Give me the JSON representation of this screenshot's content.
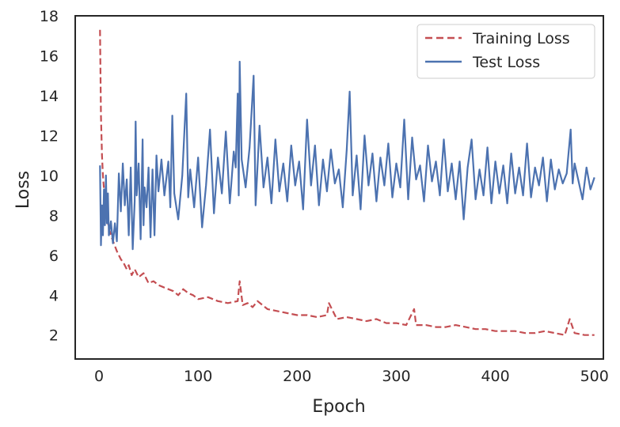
{
  "chart_data": {
    "type": "line",
    "xlabel": "Epoch",
    "ylabel": "Loss",
    "xlim": [
      -24,
      509
    ],
    "ylim": [
      0.8,
      18
    ],
    "xticks": [
      0,
      100,
      200,
      300,
      400,
      500
    ],
    "yticks": [
      2,
      4,
      6,
      8,
      10,
      12,
      14,
      16,
      18
    ],
    "grid": false,
    "legend": {
      "placement": "top-right"
    },
    "series": [
      {
        "name": "Training Loss",
        "color": "#c44e52",
        "style": "dashed",
        "x": [
          1,
          2,
          3,
          4,
          5,
          6,
          7,
          8,
          10,
          12,
          15,
          18,
          20,
          22,
          25,
          28,
          30,
          33,
          36,
          40,
          45,
          50,
          55,
          60,
          65,
          70,
          75,
          80,
          85,
          90,
          95,
          100,
          110,
          120,
          130,
          140,
          142,
          145,
          150,
          155,
          160,
          170,
          180,
          190,
          200,
          210,
          220,
          230,
          232,
          240,
          250,
          260,
          270,
          280,
          290,
          300,
          310,
          318,
          320,
          330,
          340,
          350,
          360,
          370,
          380,
          390,
          400,
          410,
          420,
          430,
          440,
          450,
          460,
          470,
          475,
          480,
          490,
          500
        ],
        "y": [
          17.3,
          13.0,
          11.0,
          10.0,
          9.3,
          8.7,
          8.3,
          7.9,
          7.4,
          7.0,
          6.6,
          6.2,
          6.0,
          5.8,
          5.6,
          5.3,
          5.5,
          5.0,
          5.3,
          4.9,
          5.1,
          4.6,
          4.7,
          4.5,
          4.4,
          4.3,
          4.2,
          4.0,
          4.3,
          4.1,
          4.0,
          3.8,
          3.9,
          3.7,
          3.6,
          3.7,
          4.7,
          3.5,
          3.6,
          3.4,
          3.7,
          3.3,
          3.2,
          3.1,
          3.0,
          3.0,
          2.9,
          3.0,
          3.6,
          2.8,
          2.9,
          2.8,
          2.7,
          2.8,
          2.6,
          2.6,
          2.5,
          3.3,
          2.5,
          2.5,
          2.4,
          2.4,
          2.5,
          2.4,
          2.3,
          2.3,
          2.2,
          2.2,
          2.2,
          2.1,
          2.1,
          2.2,
          2.1,
          2.0,
          2.8,
          2.1,
          2.0,
          2.0
        ]
      },
      {
        "name": "Test Loss",
        "color": "#4c72b0",
        "style": "solid",
        "x": [
          1,
          2,
          3,
          4,
          5,
          6,
          7,
          8,
          9,
          10,
          12,
          14,
          16,
          18,
          20,
          22,
          24,
          26,
          28,
          30,
          32,
          34,
          36,
          37,
          38,
          40,
          42,
          44,
          45,
          46,
          48,
          50,
          52,
          54,
          56,
          58,
          60,
          63,
          66,
          70,
          72,
          74,
          76,
          80,
          84,
          88,
          90,
          92,
          96,
          100,
          104,
          108,
          112,
          116,
          120,
          124,
          128,
          132,
          136,
          138,
          140,
          141,
          142,
          144,
          148,
          152,
          156,
          158,
          162,
          166,
          170,
          174,
          178,
          182,
          186,
          190,
          194,
          198,
          202,
          206,
          210,
          214,
          218,
          222,
          226,
          230,
          234,
          238,
          242,
          246,
          250,
          253,
          256,
          260,
          264,
          268,
          272,
          276,
          280,
          284,
          288,
          292,
          296,
          300,
          304,
          308,
          312,
          316,
          320,
          324,
          328,
          332,
          336,
          340,
          344,
          348,
          352,
          356,
          360,
          364,
          368,
          372,
          376,
          380,
          384,
          388,
          392,
          396,
          400,
          404,
          408,
          412,
          416,
          420,
          424,
          428,
          432,
          436,
          440,
          444,
          448,
          452,
          456,
          460,
          464,
          468,
          472,
          476,
          478,
          480,
          484,
          488,
          492,
          496,
          500
        ],
        "y": [
          10.5,
          6.5,
          8.5,
          7.0,
          9.3,
          7.5,
          10.0,
          7.6,
          9.1,
          7.0,
          7.7,
          6.6,
          7.6,
          6.7,
          10.1,
          8.2,
          10.6,
          8.5,
          9.8,
          7.0,
          10.4,
          6.3,
          8.7,
          12.7,
          9.0,
          10.6,
          6.8,
          11.8,
          7.5,
          9.4,
          8.4,
          10.4,
          6.9,
          10.3,
          7.0,
          11.0,
          9.2,
          10.8,
          9.0,
          10.7,
          8.4,
          13.0,
          9.1,
          7.8,
          10.0,
          14.1,
          8.9,
          10.3,
          8.4,
          10.9,
          7.4,
          9.5,
          12.3,
          8.1,
          10.9,
          9.1,
          12.2,
          8.6,
          11.2,
          10.4,
          14.1,
          9.0,
          15.7,
          10.8,
          9.4,
          11.4,
          15.0,
          8.5,
          12.5,
          9.4,
          10.9,
          8.6,
          11.8,
          9.2,
          10.6,
          8.7,
          11.5,
          9.5,
          10.7,
          8.3,
          12.8,
          9.5,
          11.5,
          8.5,
          10.8,
          9.2,
          11.3,
          9.6,
          10.3,
          8.4,
          11.3,
          14.2,
          9.0,
          11.0,
          8.3,
          12.0,
          9.5,
          11.1,
          8.7,
          10.9,
          9.5,
          11.6,
          8.9,
          10.6,
          9.4,
          12.8,
          8.8,
          11.9,
          9.8,
          10.5,
          8.7,
          11.5,
          9.7,
          10.7,
          9.0,
          11.8,
          9.2,
          10.6,
          8.8,
          10.7,
          7.8,
          10.4,
          11.8,
          8.8,
          10.3,
          9.0,
          11.4,
          8.6,
          10.7,
          9.1,
          10.5,
          8.6,
          11.1,
          9.1,
          10.4,
          9.0,
          11.6,
          8.9,
          10.4,
          9.5,
          10.9,
          8.7,
          10.8,
          9.3,
          10.3,
          9.6,
          10.1,
          12.3,
          9.6,
          10.6,
          9.7,
          8.8,
          10.4,
          9.3,
          9.9
        ]
      }
    ]
  }
}
